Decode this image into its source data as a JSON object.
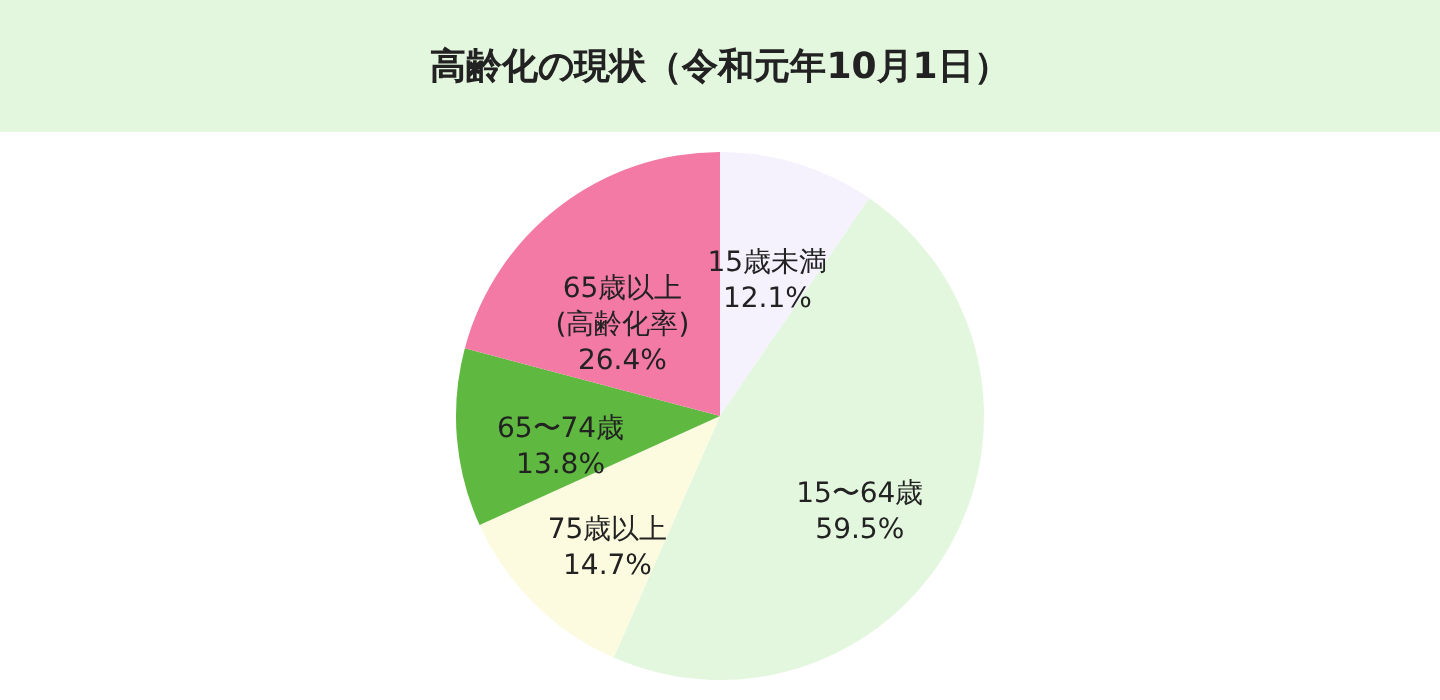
{
  "chart_data": {
    "type": "pie",
    "title": "高齢化の現状（令和元年10月1日）",
    "categories": [
      "15歳未満",
      "15〜64歳",
      "75歳以上",
      "65〜74歳",
      "65歳以上\n(高齢化率)"
    ],
    "values": [
      12.1,
      59.5,
      14.7,
      13.8,
      26.4
    ],
    "value_labels": [
      "12.1%",
      "59.5%",
      "14.7%",
      "13.8%",
      "26.4%"
    ],
    "colors": [
      "#f5f2fd",
      "#e3f6de",
      "#fcfbe0",
      "#5fb83f",
      "#f27aa4"
    ]
  }
}
